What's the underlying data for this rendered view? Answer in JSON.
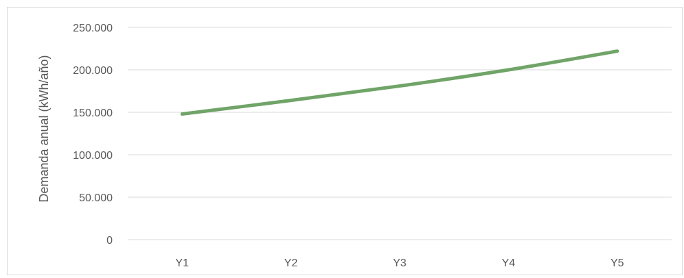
{
  "chart_data": {
    "type": "line",
    "title": "",
    "xlabel": "",
    "ylabel": "Demanda anual (kWh/año)",
    "categories": [
      "Y1",
      "Y2",
      "Y3",
      "Y4",
      "Y5"
    ],
    "series": [
      {
        "values": [
          148000,
          164000,
          181000,
          200000,
          222000
        ],
        "color": "#70a468"
      }
    ],
    "ylim": [
      0,
      250000
    ],
    "yticks": [
      0,
      50000,
      100000,
      150000,
      200000,
      250000
    ],
    "ytick_labels": [
      "0",
      "50.000",
      "100.000",
      "150.000",
      "200.000",
      "250.000"
    ],
    "grid": true,
    "gridline_color": "#d9d9d9",
    "legend": "none"
  }
}
